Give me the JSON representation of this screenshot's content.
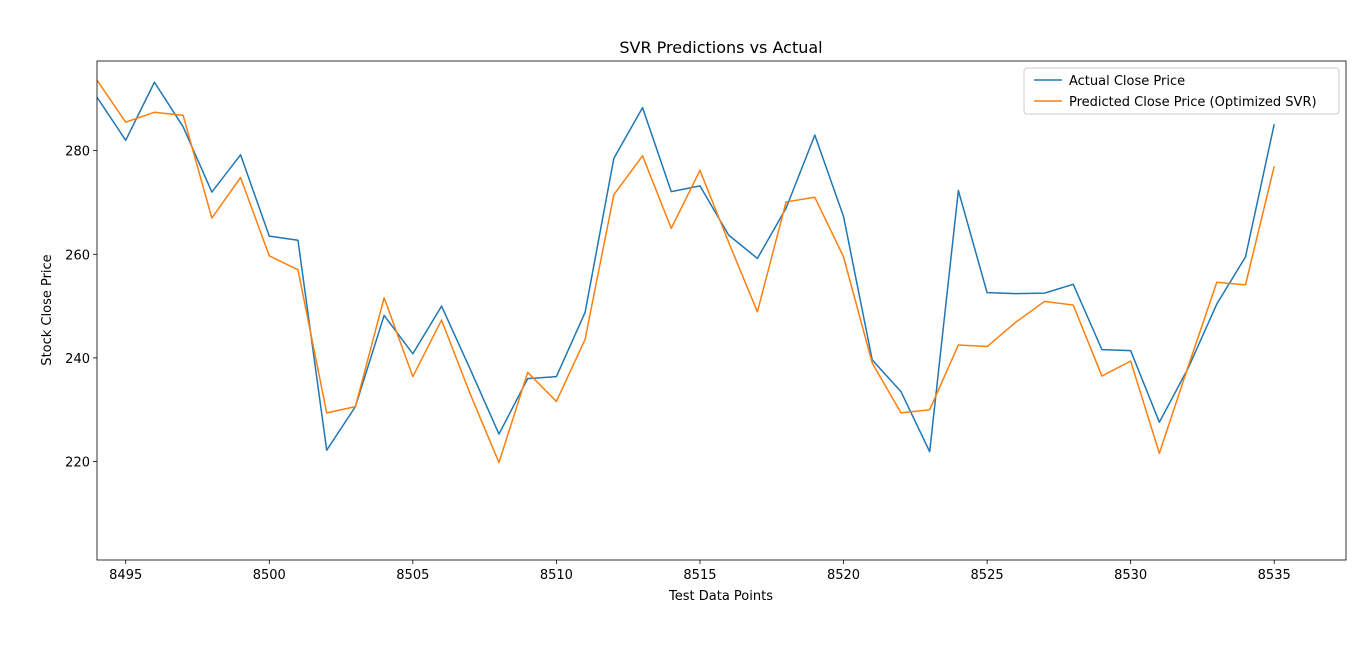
{
  "chart_data": {
    "type": "line",
    "title": "SVR Predictions vs Actual",
    "xlabel": "Test Data Points",
    "ylabel": "Stock Close Price",
    "xlim": [
      8494,
      8537.5
    ],
    "ylim": [
      201,
      297.3
    ],
    "xticks": [
      8495,
      8500,
      8505,
      8510,
      8515,
      8520,
      8525,
      8530,
      8535
    ],
    "yticks": [
      220,
      240,
      260,
      280
    ],
    "grid": false,
    "legend_position": "top-right",
    "x": [
      8494,
      8495,
      8496,
      8497,
      8498,
      8499,
      8500,
      8501,
      8502,
      8503,
      8504,
      8505,
      8506,
      8507,
      8508,
      8509,
      8510,
      8511,
      8512,
      8513,
      8514,
      8515,
      8516,
      8517,
      8518,
      8519,
      8520,
      8521,
      8522,
      8523,
      8524,
      8525,
      8526,
      8527,
      8528,
      8529,
      8530,
      8531,
      8532,
      8533,
      8534,
      8535
    ],
    "series": [
      {
        "name": "Actual Close Price",
        "color": "#1f77b4",
        "values": [
          290.3,
          282.0,
          293.2,
          284.6,
          272.0,
          279.2,
          263.5,
          262.7,
          222.2,
          230.6,
          248.2,
          240.8,
          250.0,
          237.8,
          225.3,
          236.0,
          236.4,
          248.8,
          278.5,
          288.3,
          272.1,
          273.2,
          263.7,
          259.2,
          268.9,
          283.0,
          267.3,
          239.6,
          233.5,
          221.9,
          272.3,
          252.6,
          252.4,
          252.5,
          254.2,
          241.6,
          241.4,
          227.6,
          238.0,
          250.4,
          259.5,
          285.1
        ]
      },
      {
        "name": "Predicted Close Price (Optimized SVR)",
        "color": "#ff7f0e",
        "values": [
          293.6,
          285.5,
          287.4,
          286.8,
          267.0,
          274.8,
          259.7,
          257.0,
          229.4,
          230.6,
          251.6,
          236.4,
          247.3,
          233.0,
          219.8,
          237.2,
          231.6,
          243.6,
          271.5,
          279.0,
          265.0,
          276.2,
          262.3,
          248.9,
          270.1,
          271.0,
          259.5,
          239.0,
          229.4,
          230.0,
          242.5,
          242.2,
          246.9,
          250.9,
          250.2,
          236.5,
          239.4,
          221.6,
          238.3,
          254.6,
          254.1,
          277.0
        ]
      }
    ]
  }
}
